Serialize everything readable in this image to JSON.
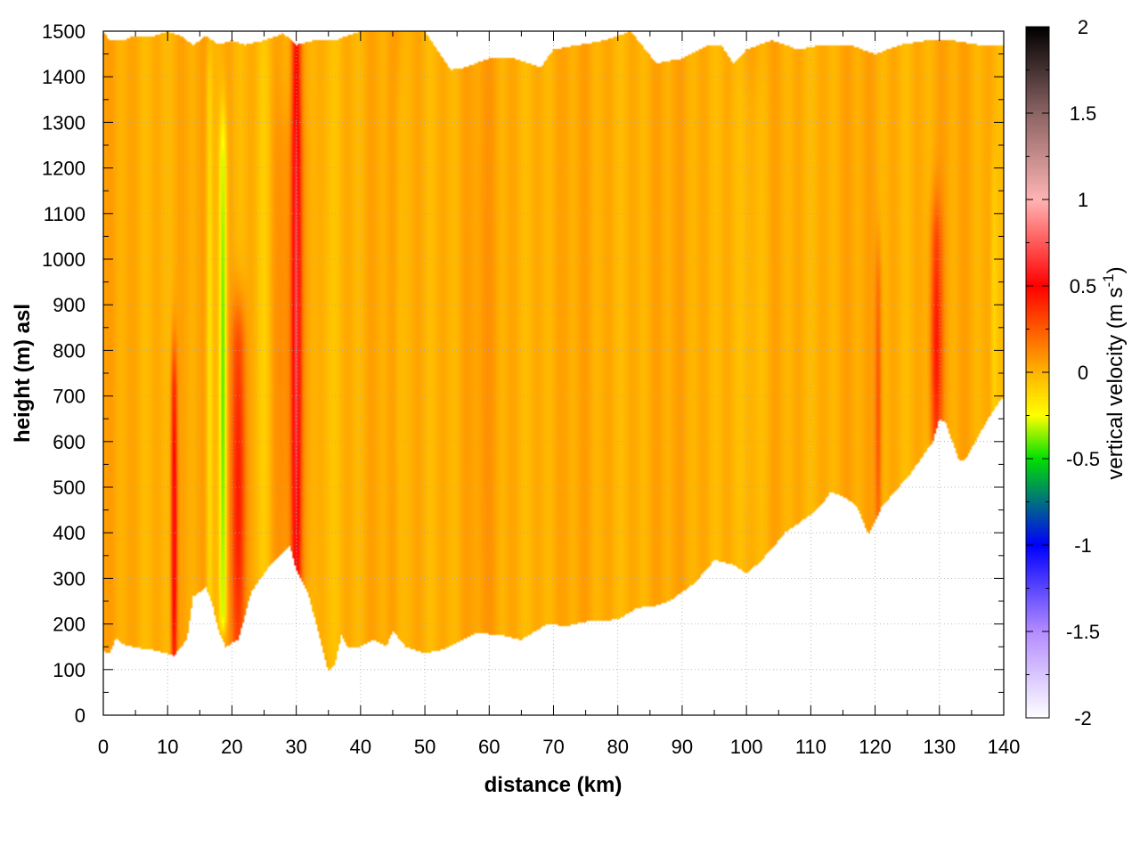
{
  "chart_data": {
    "type": "heatmap",
    "xlabel": "distance (km)",
    "ylabel": "height (m) asl",
    "colorbar_label_main": "vertical velocity (m s",
    "colorbar_label_sup": "-1",
    "colorbar_label_end": ")",
    "xlim": [
      0,
      140
    ],
    "ylim": [
      0,
      1500
    ],
    "clim": [
      -2,
      2
    ],
    "x_ticks": [
      "0",
      "10",
      "20",
      "30",
      "40",
      "50",
      "60",
      "70",
      "80",
      "90",
      "100",
      "110",
      "120",
      "130",
      "140"
    ],
    "y_ticks": [
      "0",
      "100",
      "200",
      "300",
      "400",
      "500",
      "600",
      "700",
      "800",
      "900",
      "1000",
      "1100",
      "1200",
      "1300",
      "1400",
      "1500"
    ],
    "colorbar_ticks": [
      "2",
      "1.5",
      "1",
      "0.5",
      "0",
      "-0.5",
      "-1",
      "-1.5",
      "-2"
    ],
    "grid": true,
    "colormap_stops": [
      {
        "v": -2.0,
        "color": "#ffffff"
      },
      {
        "v": -1.5,
        "color": "#b48cff"
      },
      {
        "v": -1.0,
        "color": "#0000ff"
      },
      {
        "v": -0.5,
        "color": "#00e000"
      },
      {
        "v": -0.25,
        "color": "#ffff00"
      },
      {
        "v": 0.0,
        "color": "#ffb400"
      },
      {
        "v": 0.5,
        "color": "#ff0000"
      },
      {
        "v": 1.0,
        "color": "#ffb4b4"
      },
      {
        "v": 1.5,
        "color": "#8c6464"
      },
      {
        "v": 2.0,
        "color": "#000000"
      }
    ],
    "lower_boundary": [
      [
        0,
        140
      ],
      [
        1,
        135
      ],
      [
        2,
        170
      ],
      [
        3,
        155
      ],
      [
        5,
        148
      ],
      [
        8,
        142
      ],
      [
        10,
        135
      ],
      [
        11,
        130
      ],
      [
        13,
        165
      ],
      [
        14,
        260
      ],
      [
        16,
        280
      ],
      [
        17,
        240
      ],
      [
        18,
        180
      ],
      [
        19,
        150
      ],
      [
        21,
        165
      ],
      [
        23,
        270
      ],
      [
        26,
        330
      ],
      [
        29,
        370
      ],
      [
        30,
        320
      ],
      [
        32,
        260
      ],
      [
        34,
        150
      ],
      [
        35,
        95
      ],
      [
        36,
        110
      ],
      [
        37,
        175
      ],
      [
        38,
        150
      ],
      [
        40,
        150
      ],
      [
        42,
        165
      ],
      [
        44,
        150
      ],
      [
        45,
        185
      ],
      [
        47,
        150
      ],
      [
        50,
        135
      ],
      [
        53,
        145
      ],
      [
        55,
        160
      ],
      [
        58,
        180
      ],
      [
        62,
        175
      ],
      [
        65,
        165
      ],
      [
        69,
        200
      ],
      [
        72,
        195
      ],
      [
        75,
        205
      ],
      [
        80,
        210
      ],
      [
        83,
        235
      ],
      [
        86,
        240
      ],
      [
        88,
        250
      ],
      [
        92,
        290
      ],
      [
        95,
        340
      ],
      [
        98,
        330
      ],
      [
        100,
        310
      ],
      [
        102,
        335
      ],
      [
        104,
        365
      ],
      [
        106,
        400
      ],
      [
        108,
        420
      ],
      [
        110,
        440
      ],
      [
        112,
        465
      ],
      [
        113,
        490
      ],
      [
        115,
        480
      ],
      [
        117,
        460
      ],
      [
        118,
        430
      ],
      [
        119,
        395
      ],
      [
        121,
        455
      ],
      [
        123,
        490
      ],
      [
        125,
        520
      ],
      [
        127,
        560
      ],
      [
        129,
        600
      ],
      [
        130,
        650
      ],
      [
        131,
        640
      ],
      [
        133,
        560
      ],
      [
        134,
        560
      ],
      [
        136,
        610
      ],
      [
        138,
        660
      ],
      [
        140,
        700
      ]
    ],
    "upper_boundary": [
      [
        0,
        1500
      ],
      [
        1,
        1480
      ],
      [
        3,
        1480
      ],
      [
        5,
        1490
      ],
      [
        8,
        1490
      ],
      [
        10,
        1500
      ],
      [
        12,
        1490
      ],
      [
        14,
        1470
      ],
      [
        16,
        1490
      ],
      [
        18,
        1470
      ],
      [
        20,
        1480
      ],
      [
        22,
        1470
      ],
      [
        25,
        1480
      ],
      [
        28,
        1495
      ],
      [
        30,
        1470
      ],
      [
        33,
        1480
      ],
      [
        36,
        1480
      ],
      [
        40,
        1500
      ],
      [
        45,
        1500
      ],
      [
        50,
        1500
      ],
      [
        54,
        1415
      ],
      [
        56,
        1420
      ],
      [
        60,
        1440
      ],
      [
        64,
        1440
      ],
      [
        68,
        1420
      ],
      [
        70,
        1460
      ],
      [
        74,
        1470
      ],
      [
        78,
        1480
      ],
      [
        82,
        1500
      ],
      [
        86,
        1430
      ],
      [
        90,
        1440
      ],
      [
        94,
        1470
      ],
      [
        96,
        1470
      ],
      [
        98,
        1430
      ],
      [
        100,
        1460
      ],
      [
        104,
        1480
      ],
      [
        108,
        1460
      ],
      [
        112,
        1470
      ],
      [
        116,
        1470
      ],
      [
        120,
        1450
      ],
      [
        124,
        1470
      ],
      [
        128,
        1480
      ],
      [
        132,
        1480
      ],
      [
        136,
        1470
      ],
      [
        140,
        1470
      ]
    ],
    "features": [
      {
        "x": 11,
        "sigma_km": 0.45,
        "v": 0.55,
        "y_top": 680,
        "y_bottom": 130
      },
      {
        "x": 18.6,
        "sigma_km": 0.55,
        "v": -0.45,
        "y_top": 1200,
        "y_bottom": 220
      },
      {
        "x": 16.5,
        "sigma_km": 0.5,
        "v": -0.2,
        "y_top": 1350,
        "y_bottom": 260
      },
      {
        "x": 21,
        "sigma_km": 1.1,
        "v": 0.45,
        "y_top": 780,
        "y_bottom": 170
      },
      {
        "x": 30,
        "sigma_km": 0.7,
        "v": 0.55,
        "y_top": 1470,
        "y_bottom": 300
      },
      {
        "x": 29,
        "sigma_km": 2.5,
        "v": 0.1,
        "y_top": 1200,
        "y_bottom": 320
      },
      {
        "x": 25,
        "sigma_km": 1.2,
        "v": -0.08,
        "y_top": 1400,
        "y_bottom": 320
      },
      {
        "x": 35,
        "sigma_km": 1.5,
        "v": -0.05,
        "y_top": 1400,
        "y_bottom": 150
      },
      {
        "x": 46,
        "sigma_km": 0.8,
        "v": -0.06,
        "y_top": 1300,
        "y_bottom": 170
      },
      {
        "x": 59,
        "sigma_km": 2.0,
        "v": 0.04,
        "y_top": 1400,
        "y_bottom": 200
      },
      {
        "x": 101,
        "sigma_km": 2.5,
        "v": -0.06,
        "y_top": 1300,
        "y_bottom": 320
      },
      {
        "x": 120.5,
        "sigma_km": 0.5,
        "v": 0.25,
        "y_top": 900,
        "y_bottom": 440
      },
      {
        "x": 129.5,
        "sigma_km": 0.9,
        "v": 0.4,
        "y_top": 1000,
        "y_bottom": 620
      },
      {
        "x": 138.5,
        "sigma_km": 0.5,
        "v": -0.12,
        "y_top": 1100,
        "y_bottom": 660
      }
    ]
  }
}
